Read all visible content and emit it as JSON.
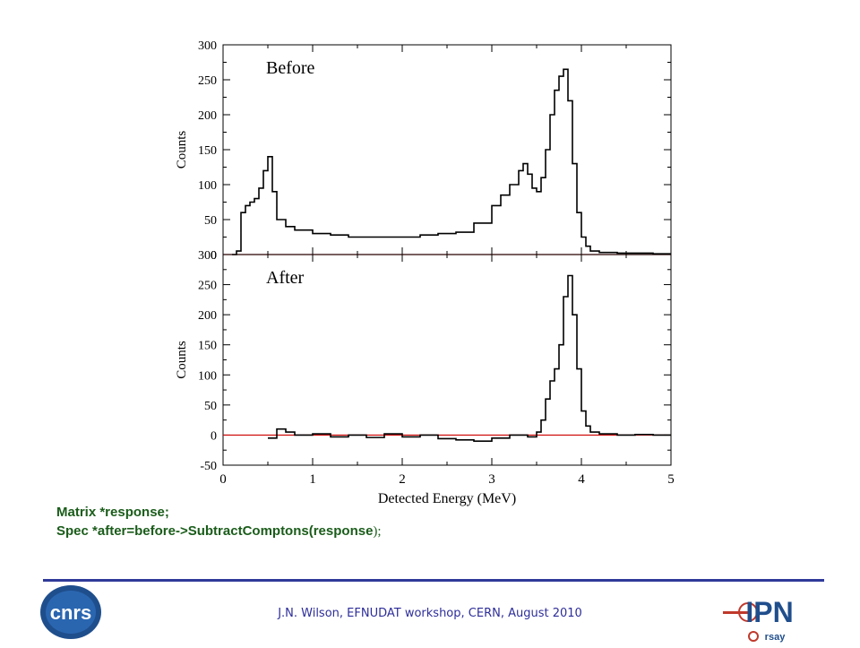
{
  "chart_data": [
    {
      "type": "line",
      "panel_label": "Before",
      "ylabel": "Counts",
      "xlim": [
        0,
        5
      ],
      "ylim": [
        0,
        300
      ],
      "yticks": [
        0,
        50,
        100,
        150,
        200,
        250,
        300
      ],
      "baseline_y": 0,
      "baseline_color": "#cc0000",
      "series_color": "#000000",
      "x": [
        0.1,
        0.15,
        0.2,
        0.25,
        0.3,
        0.35,
        0.4,
        0.45,
        0.5,
        0.55,
        0.6,
        0.7,
        0.8,
        1.0,
        1.2,
        1.4,
        1.6,
        1.8,
        2.0,
        2.2,
        2.4,
        2.6,
        2.8,
        3.0,
        3.1,
        3.2,
        3.3,
        3.35,
        3.4,
        3.45,
        3.5,
        3.55,
        3.6,
        3.65,
        3.7,
        3.75,
        3.8,
        3.85,
        3.9,
        3.95,
        4.0,
        4.05,
        4.1,
        4.2,
        4.4,
        4.6,
        4.8,
        5.0
      ],
      "y": [
        0,
        5,
        60,
        70,
        75,
        80,
        95,
        120,
        140,
        90,
        50,
        40,
        35,
        30,
        28,
        25,
        25,
        25,
        25,
        28,
        30,
        32,
        45,
        70,
        85,
        100,
        120,
        130,
        115,
        95,
        90,
        110,
        150,
        200,
        235,
        255,
        265,
        220,
        130,
        60,
        25,
        12,
        5,
        3,
        2,
        2,
        1,
        1
      ]
    },
    {
      "type": "line",
      "panel_label": "After",
      "ylabel": "Counts",
      "xlabel": "Detected Energy (MeV)",
      "xlim": [
        0,
        5
      ],
      "ylim": [
        -50,
        300
      ],
      "yticks": [
        -50,
        0,
        50,
        100,
        150,
        200,
        250,
        300
      ],
      "xticks": [
        0,
        1,
        2,
        3,
        4,
        5
      ],
      "baseline_y": 0,
      "baseline_color": "#cc0000",
      "series_color": "#000000",
      "x": [
        0.5,
        0.6,
        0.7,
        0.8,
        1.0,
        1.2,
        1.4,
        1.6,
        1.8,
        2.0,
        2.2,
        2.4,
        2.6,
        2.8,
        3.0,
        3.2,
        3.4,
        3.5,
        3.55,
        3.6,
        3.65,
        3.7,
        3.75,
        3.8,
        3.85,
        3.9,
        3.95,
        4.0,
        4.05,
        4.1,
        4.2,
        4.4,
        4.6,
        4.8,
        5.0
      ],
      "y": [
        -5,
        10,
        5,
        0,
        2,
        -3,
        0,
        -4,
        2,
        -3,
        0,
        -6,
        -8,
        -10,
        -5,
        0,
        -3,
        5,
        25,
        60,
        90,
        110,
        150,
        230,
        265,
        200,
        110,
        40,
        15,
        5,
        2,
        0,
        1,
        0,
        0
      ]
    }
  ],
  "code": {
    "line1": "Matrix *response;",
    "line2": "Spec *after=before->SubtractComptons(response",
    "line2_tail": ");"
  },
  "footer": {
    "text": "J.N. Wilson,  EFNUDAT workshop, CERN, August 2010"
  },
  "logos": {
    "left": {
      "icon": "cnrs-logo",
      "text": "cnrs",
      "color": "#1f4e8c"
    },
    "right": {
      "icon": "ipn-orsay-logo",
      "text_top": "IPN",
      "text_bottom": "rsay",
      "color": "#1f4e8c",
      "accent": "#c0392b"
    }
  }
}
